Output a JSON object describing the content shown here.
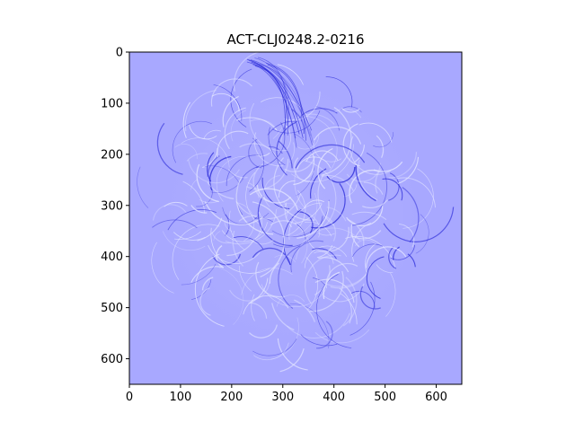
{
  "title": "ACT-CLJ0248.2-0216",
  "colors": {
    "background": "#a8a8ff",
    "feature_light": "#e4e6ff",
    "feature_dark": "#2a2ad8",
    "axis": "#000000"
  },
  "chart_data": {
    "type": "heatmap",
    "title": "ACT-CLJ0248.2-0216",
    "xlabel": "",
    "ylabel": "",
    "xlim": [
      0,
      650
    ],
    "ylim": [
      650,
      0
    ],
    "x_ticks": [
      0,
      100,
      200,
      300,
      400,
      500,
      600
    ],
    "y_ticks": [
      0,
      100,
      200,
      300,
      400,
      500,
      600
    ],
    "x_tick_labels": [
      "0",
      "100",
      "200",
      "300",
      "400",
      "500",
      "600"
    ],
    "y_tick_labels": [
      "0",
      "100",
      "200",
      "300",
      "400",
      "500",
      "600"
    ],
    "grid": false,
    "legend": "none",
    "colormap": "bwr"
  }
}
